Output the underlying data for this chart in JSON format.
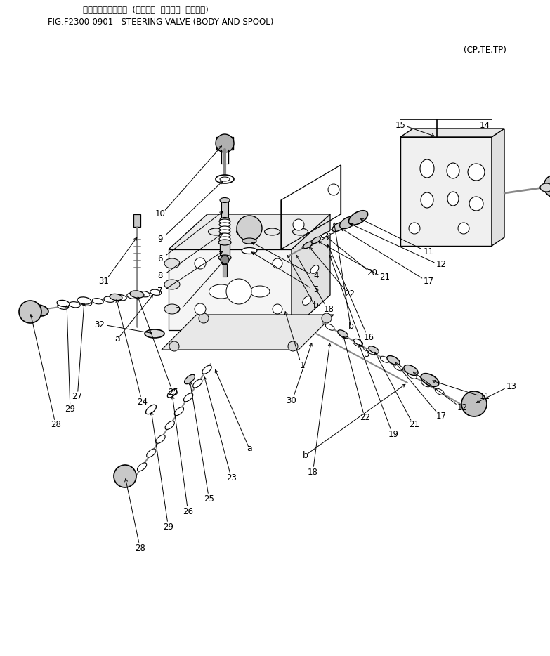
{
  "title_jp": "ステアリングバルブ  (ボディー  オヨビー  スプール)",
  "title_en": "FIG.F2300-0901   STEERING VALVE (BODY AND SPOOL)",
  "subtitle": "(CP,TE,TP)",
  "bg_color": "#ffffff",
  "fig_width": 7.83,
  "fig_height": 9.34,
  "dpi": 100
}
